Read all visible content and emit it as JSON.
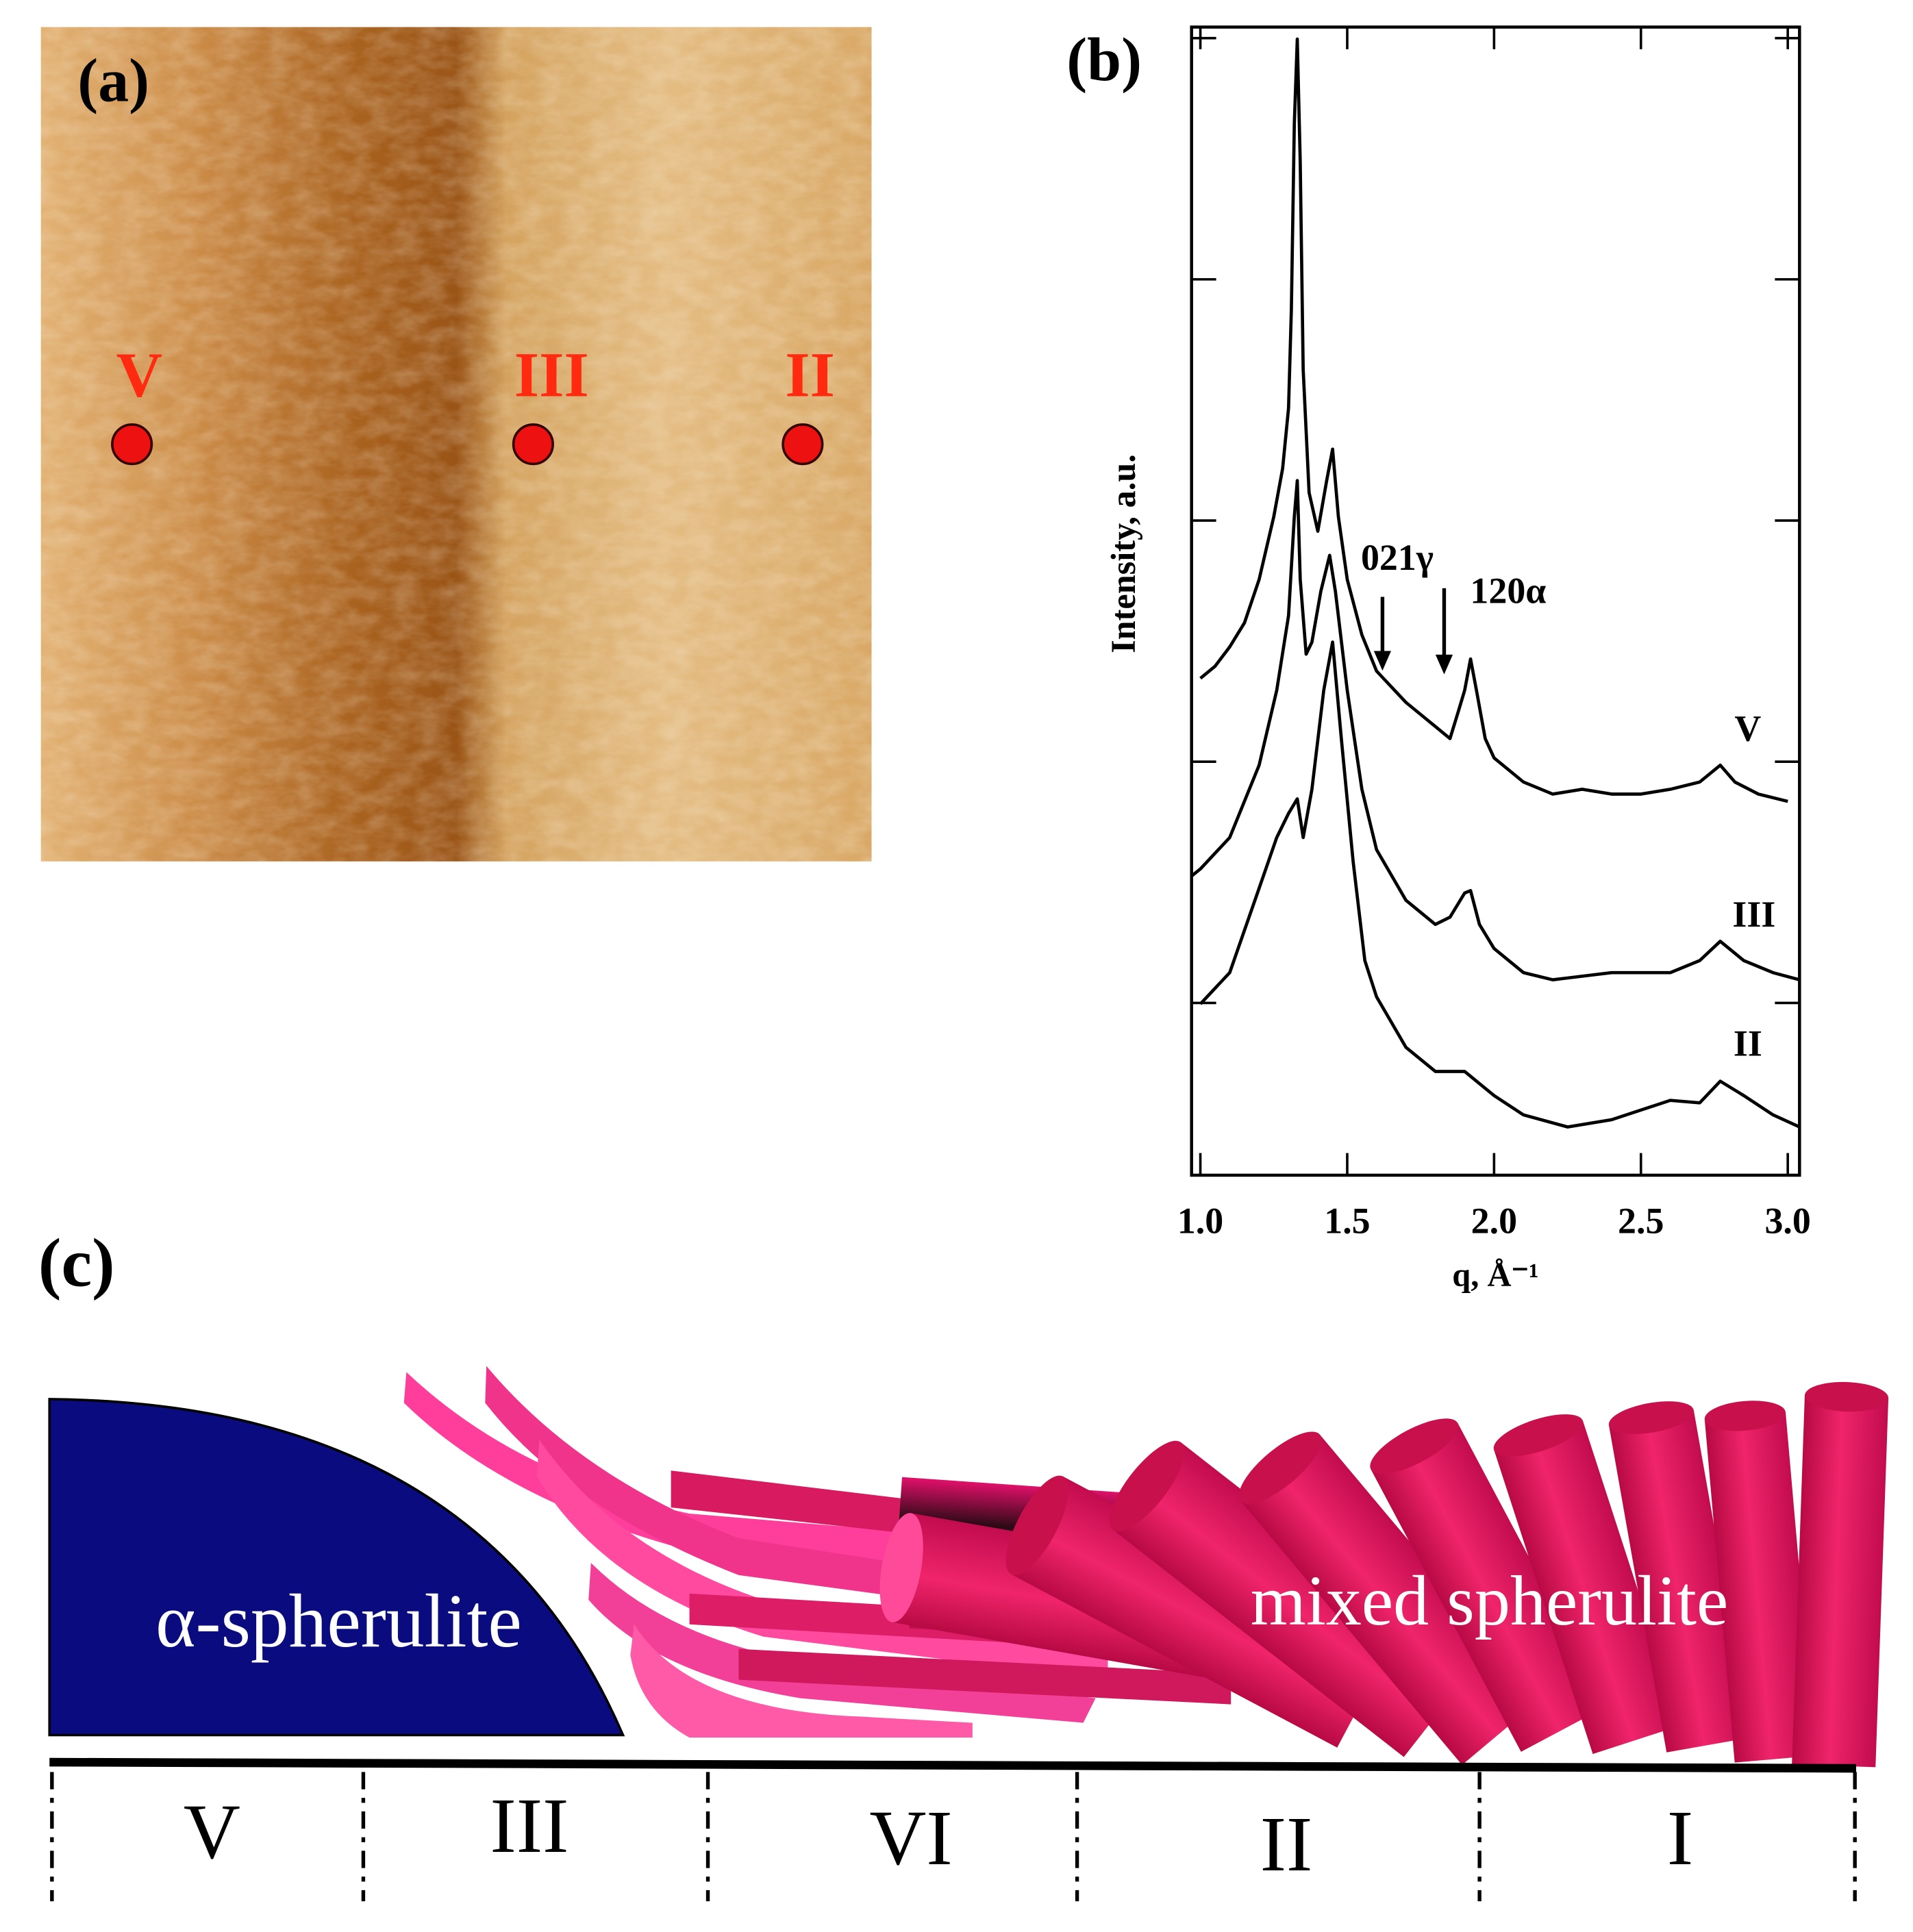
{
  "panel_a": {
    "label": "(a)",
    "points": [
      "V",
      "III",
      "II"
    ]
  },
  "chart_data": {
    "type": "line",
    "label": "(b)",
    "x_label": "q, Å⁻¹",
    "y_label": "Intensity, a.u.",
    "xlim": [
      0.97,
      3.04
    ],
    "ylim": [
      -0.71,
      4.05
    ],
    "xticks": [
      {
        "value": 1.0,
        "label": "1.0"
      },
      1.5,
      {
        "value": 2.0,
        "label": "2.0"
      },
      2.5,
      {
        "value": 3.0,
        "label": "3.0"
      }
    ],
    "series": [
      {
        "name": "V",
        "color": "#000000",
        "x": [
          1.0,
          1.05,
          1.1,
          1.15,
          1.2,
          1.25,
          1.28,
          1.3,
          1.31,
          1.32,
          1.33,
          1.34,
          1.35,
          1.37,
          1.4,
          1.43,
          1.45,
          1.47,
          1.5,
          1.55,
          1.6,
          1.7,
          1.8,
          1.85,
          1.88,
          1.9,
          1.92,
          1.94,
          1.97,
          2.0,
          2.1,
          2.2,
          2.3,
          2.4,
          2.5,
          2.6,
          2.7,
          2.77,
          2.82,
          2.9,
          3.0
        ],
        "values": [
          1.35,
          1.4,
          1.48,
          1.58,
          1.76,
          2.02,
          2.22,
          2.47,
          2.88,
          3.65,
          4.0,
          3.49,
          2.63,
          2.12,
          1.96,
          2.17,
          2.3,
          2.02,
          1.76,
          1.53,
          1.38,
          1.25,
          1.15,
          1.1,
          1.22,
          1.3,
          1.43,
          1.3,
          1.1,
          1.02,
          0.92,
          0.87,
          0.89,
          0.87,
          0.87,
          0.89,
          0.92,
          0.99,
          0.92,
          0.87,
          0.84
        ]
      },
      {
        "name": "III",
        "color": "#000000",
        "x": [
          0.97,
          1.0,
          1.1,
          1.2,
          1.26,
          1.3,
          1.32,
          1.33,
          1.34,
          1.36,
          1.38,
          1.41,
          1.44,
          1.46,
          1.5,
          1.55,
          1.6,
          1.7,
          1.8,
          1.85,
          1.9,
          1.92,
          1.95,
          2.0,
          2.1,
          2.2,
          2.4,
          2.6,
          2.7,
          2.77,
          2.85,
          2.95,
          3.04
        ],
        "values": [
          0.53,
          0.56,
          0.69,
          0.99,
          1.3,
          1.61,
          2.02,
          2.17,
          1.76,
          1.45,
          1.5,
          1.71,
          1.86,
          1.71,
          1.3,
          0.89,
          0.64,
          0.43,
          0.33,
          0.36,
          0.46,
          0.47,
          0.33,
          0.23,
          0.13,
          0.1,
          0.13,
          0.13,
          0.18,
          0.26,
          0.18,
          0.13,
          0.1
        ]
      },
      {
        "name": "II",
        "color": "#000000",
        "x": [
          1.0,
          1.1,
          1.2,
          1.26,
          1.3,
          1.33,
          1.35,
          1.38,
          1.42,
          1.45,
          1.48,
          1.52,
          1.56,
          1.6,
          1.7,
          1.8,
          1.9,
          2.0,
          2.1,
          2.25,
          2.4,
          2.6,
          2.7,
          2.77,
          2.85,
          2.95,
          3.04
        ],
        "values": [
          0,
          0.13,
          0.48,
          0.69,
          0.79,
          0.85,
          0.69,
          0.89,
          1.3,
          1.5,
          1.1,
          0.59,
          0.18,
          0.03,
          -0.18,
          -0.28,
          -0.28,
          -0.38,
          -0.46,
          -0.51,
          -0.48,
          -0.4,
          -0.41,
          -0.32,
          -0.38,
          -0.46,
          -0.51
        ]
      }
    ],
    "annotations": [
      {
        "text": "021γ",
        "x": 1.62
      },
      {
        "text": "120α",
        "x": 1.83
      }
    ]
  },
  "panel_c": {
    "label": "(c)",
    "left_text": "α-spherulite",
    "right_text": "mixed spherulite",
    "regions": [
      "V",
      "III",
      "VI",
      "II",
      "I"
    ]
  }
}
